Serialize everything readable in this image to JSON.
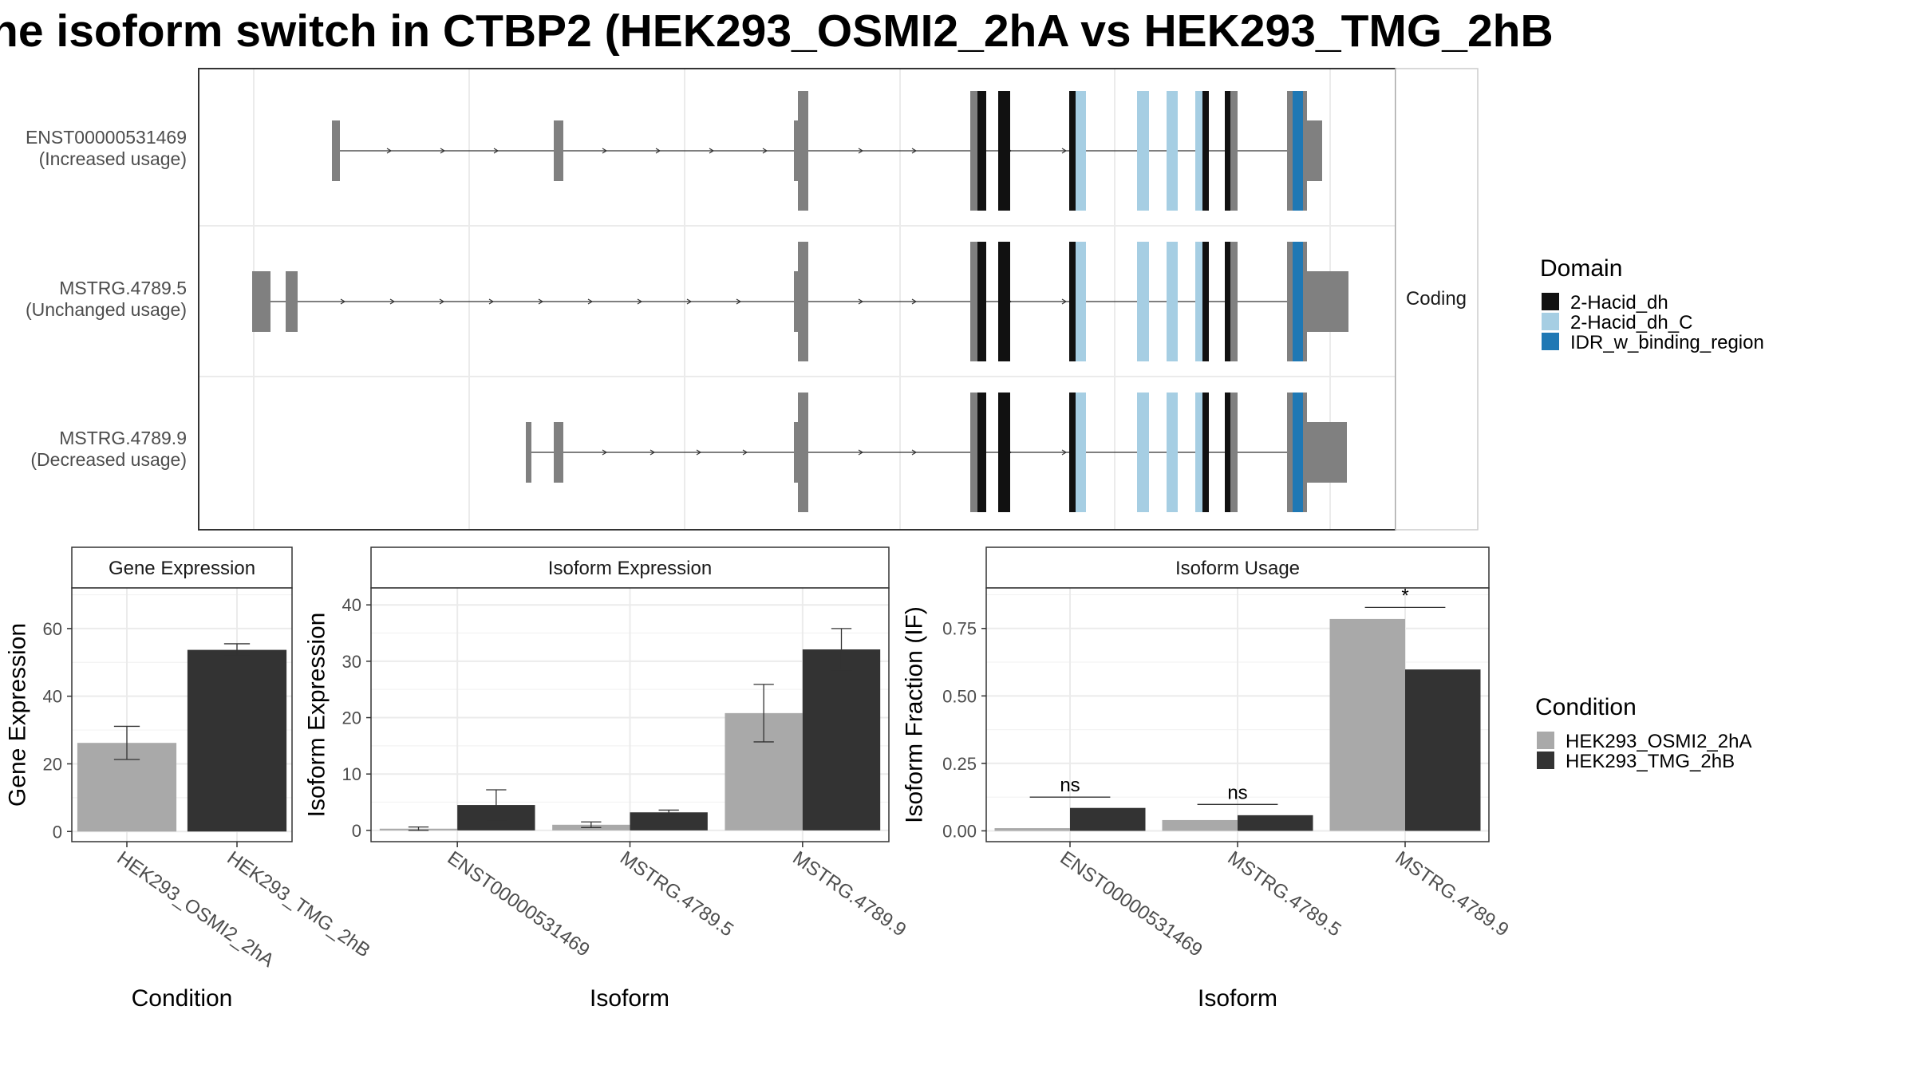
{
  "title": "he isoform switch in CTBP2 (HEK293_OSMI2_2hA vs HEK293_TMG_2hB",
  "colors": {
    "2-Hacid_dh": "#111111",
    "2-Hacid_dh_C": "#a6cee3",
    "IDR_w_binding_region": "#1f78b4",
    "noncoding": "#808080",
    "condA": "#a9a9a9",
    "condB": "#333333",
    "grid": "#ebebeb"
  },
  "transcript_panel": {
    "facet_label": "Coding",
    "rows": [
      {
        "id": "ENST00000531469",
        "usage": "(Increased usage)"
      },
      {
        "id": "MSTRG.4789.5",
        "usage": "(Unchanged usage)"
      },
      {
        "id": "MSTRG.4789.9",
        "usage": "(Decreased usage)"
      }
    ]
  },
  "domain_legend": {
    "title": "Domain",
    "items": [
      "2-Hacid_dh",
      "2-Hacid_dh_C",
      "IDR_w_binding_region"
    ]
  },
  "condition_legend": {
    "title": "Condition",
    "items": [
      "HEK293_OSMI2_2hA",
      "HEK293_TMG_2hB"
    ]
  },
  "chart_data": [
    {
      "type": "bar",
      "facet": "Gene Expression",
      "xlabel": "Condition",
      "ylabel": "Gene Expression",
      "categories": [
        "HEK293_OSMI2_2hA",
        "HEK293_TMG_2hB"
      ],
      "values": [
        26.2,
        53.7
      ],
      "errors": [
        [
          21.3,
          31.1
        ],
        [
          52.0,
          55.5
        ]
      ],
      "ylim": [
        -3,
        72
      ],
      "yticks": [
        0,
        20,
        40,
        60
      ]
    },
    {
      "type": "bar",
      "facet": "Isoform Expression",
      "xlabel": "Isoform",
      "ylabel": "Isoform Expression",
      "categories": [
        "ENST00000531469",
        "MSTRG.4789.5",
        "MSTRG.4789.9"
      ],
      "series": [
        {
          "name": "HEK293_OSMI2_2hA",
          "values": [
            0.3,
            1.0,
            20.8
          ],
          "errors": [
            [
              0.0,
              0.6
            ],
            [
              0.5,
              1.5
            ],
            [
              15.7,
              25.9
            ]
          ]
        },
        {
          "name": "HEK293_TMG_2hB",
          "values": [
            4.5,
            3.2,
            32.1
          ],
          "errors": [
            [
              1.8,
              7.2
            ],
            [
              2.8,
              3.6
            ],
            [
              28.4,
              35.8
            ]
          ]
        }
      ],
      "ylim": [
        -2,
        43
      ],
      "yticks": [
        0,
        10,
        20,
        30,
        40
      ]
    },
    {
      "type": "bar",
      "facet": "Isoform Usage",
      "xlabel": "Isoform",
      "ylabel": "Isoform Fraction (IF)",
      "categories": [
        "ENST00000531469",
        "MSTRG.4789.5",
        "MSTRG.4789.9"
      ],
      "series": [
        {
          "name": "HEK293_OSMI2_2hA",
          "values": [
            0.01,
            0.04,
            0.785
          ]
        },
        {
          "name": "HEK293_TMG_2hB",
          "values": [
            0.085,
            0.058,
            0.598
          ]
        }
      ],
      "significance": [
        {
          "category": "ENST00000531469",
          "label": "ns",
          "y": 0.125
        },
        {
          "category": "MSTRG.4789.5",
          "label": "ns",
          "y": 0.098
        },
        {
          "category": "MSTRG.4789.9",
          "label": "*",
          "y": 0.828
        }
      ],
      "ylim": [
        -0.04,
        0.9
      ],
      "yticks": [
        0.0,
        0.25,
        0.5,
        0.75
      ],
      "yticklabels": [
        "0.00",
        "0.25",
        "0.50",
        "0.75"
      ]
    }
  ]
}
